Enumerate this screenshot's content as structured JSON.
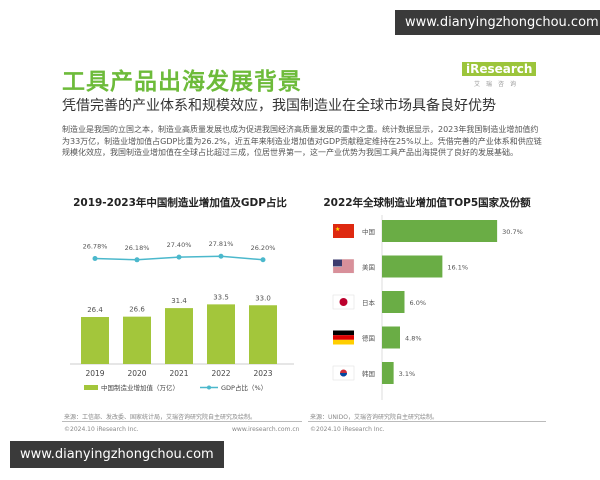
{
  "watermark_top": "www.dianyingzhongchou.com",
  "watermark_bottom": "www.dianyingzhongchou.com",
  "logo": {
    "brand": "iResearch",
    "cn": "艾瑞咨询"
  },
  "title": "工具产品出海发展背景",
  "subtitle": "凭借完善的产业体系和规模效应，我国制造业在全球市场具备良好优势",
  "body": "制造业是我国的立国之本，制造业高质量发展也成为促进我国经济高质量发展的重中之重。统计数据显示，2023年我国制造业增加值约为33万亿，制造业增加值占GDP比重为26.2%，近五年来制造业增加值对GDP贡献稳定维持在25%以上。凭借完善的产业体系和供应链规模化效应，我国制造业增加值在全球占比超过三成，位居世界第一，这一产业优势为我国工具产品出海提供了良好的发展基础。",
  "chart_data": [
    {
      "type": "bar+line",
      "title": "2019-2023年中国制造业增加值及GDP占比",
      "categories": [
        "2019",
        "2020",
        "2021",
        "2022",
        "2023"
      ],
      "series": [
        {
          "name": "中国制造业增加值（万亿）",
          "type": "bar",
          "values": [
            26.4,
            26.6,
            31.4,
            33.5,
            33.0
          ],
          "labels": [
            "26.4",
            "26.6",
            "31.4",
            "33.5",
            "33.0"
          ],
          "color": "#a3c63b"
        },
        {
          "name": "GDP占比（%）",
          "type": "line",
          "values": [
            26.78,
            26.18,
            27.4,
            27.81,
            26.2
          ],
          "labels": [
            "26.78%",
            "26.18%",
            "27.40%",
            "27.81%",
            "26.20%"
          ],
          "color": "#4bb8cc"
        }
      ],
      "source": "来源：工信部、发改委、国家统计局，艾瑞咨询研究院自主研究及绘制。"
    },
    {
      "type": "bar",
      "orientation": "horizontal",
      "title": "2022年全球制造业增加值TOP5国家及份额",
      "categories": [
        "中国",
        "美国",
        "日本",
        "德国",
        "韩国"
      ],
      "flags": [
        "china-flag",
        "usa-flag",
        "japan-flag",
        "germany-flag",
        "korea-flag"
      ],
      "values": [
        30.7,
        16.1,
        6.0,
        4.8,
        3.1
      ],
      "labels": [
        "30.7%",
        "16.1%",
        "6.0%",
        "4.8%",
        "3.1%"
      ],
      "color": "#6aad45",
      "source": "来源：UNIDO，艾瑞咨询研究院自主研究绘制。"
    }
  ],
  "footer": {
    "left_copyright": "©2024.10 iResearch Inc.",
    "left_url": "www.iresearch.com.cn",
    "right_copyright": "©2024.10 iResearch Inc."
  }
}
